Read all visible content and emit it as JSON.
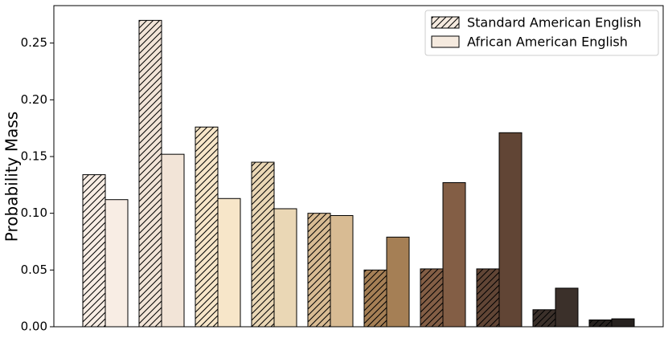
{
  "chart_data": {
    "type": "bar",
    "ylabel": "Probability Mass",
    "categories": [
      null,
      null,
      null,
      null,
      null,
      null,
      null,
      null,
      null,
      null
    ],
    "category_colors": [
      "#f8ede4",
      "#f2e4d7",
      "#f7e6c9",
      "#ead7b5",
      "#d8bb93",
      "#a57f55",
      "#835e45",
      "#614535",
      "#3b302a",
      "#27221f"
    ],
    "series": [
      {
        "name": "Standard American English",
        "color": "#f5eadf",
        "hatch": true,
        "values": [
          0.134,
          0.27,
          0.176,
          0.145,
          0.1,
          0.05,
          0.051,
          0.051,
          0.015,
          0.006
        ]
      },
      {
        "name": "African American English",
        "color": "#f5eadf",
        "hatch": false,
        "values": [
          0.112,
          0.152,
          0.113,
          0.104,
          0.098,
          0.079,
          0.127,
          0.171,
          0.034,
          0.007
        ]
      }
    ],
    "ylim": [
      0,
      0.283
    ],
    "yticks": [
      {
        "value": 0,
        "label": "0.00"
      },
      0.05,
      {
        "value": 0.1,
        "label": "0.10"
      },
      0.15,
      {
        "value": 0.2,
        "label": "0.20"
      },
      0.25
    ],
    "legend": "upper right"
  }
}
